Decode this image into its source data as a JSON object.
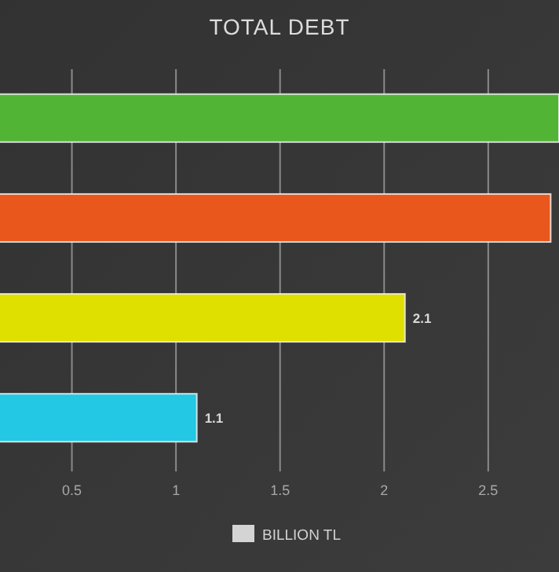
{
  "chart_data": {
    "type": "bar",
    "orientation": "horizontal",
    "title": "TOTAL DEBT",
    "categories": [
      null,
      null,
      null,
      null
    ],
    "series": [
      {
        "name": "BILLION TL",
        "color": "#d4d4d4",
        "colors": [
          "#52b435",
          "#ea571c",
          "#dfdf00",
          "#22c8e4"
        ],
        "values": [
          2.84,
          2.8,
          2.1,
          1.1
        ],
        "value_labels": [
          null,
          null,
          "2.1",
          "1.1"
        ]
      }
    ],
    "xlim": [
      0,
      2.84
    ],
    "xticks": [
      0.5,
      1,
      1.5,
      2,
      2.5
    ],
    "grid": "x",
    "legend": "bottom",
    "tick_labels": "x"
  }
}
